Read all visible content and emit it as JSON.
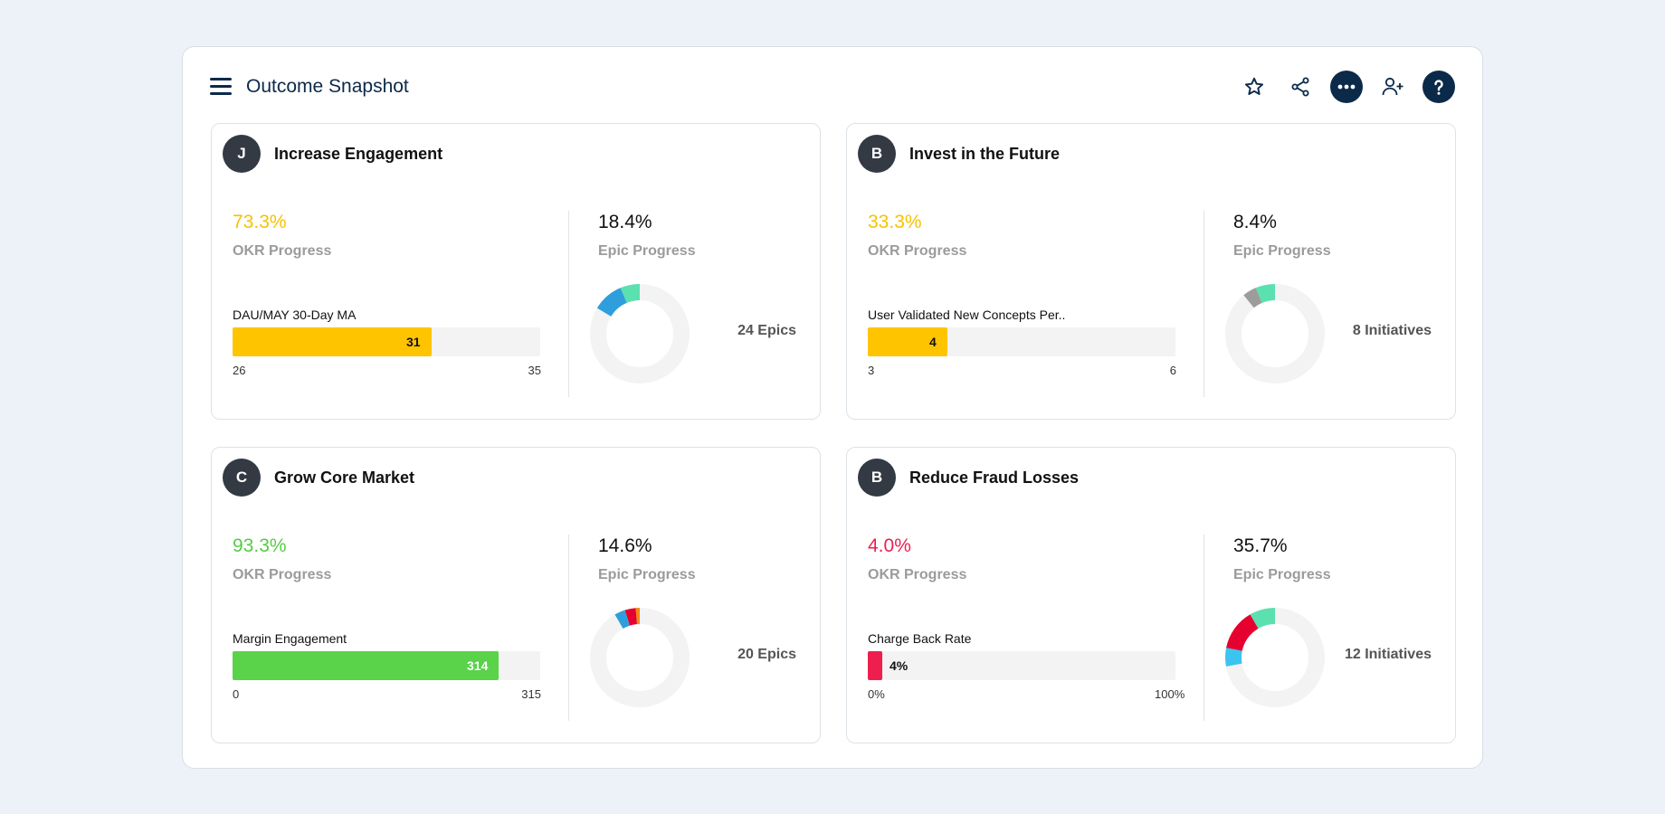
{
  "header": {
    "title": "Outcome Snapshot",
    "icons": [
      "menu-icon",
      "star-icon",
      "share-icon",
      "more-icon",
      "add-user-icon",
      "help-icon"
    ]
  },
  "cards": [
    {
      "avatar": "J",
      "title": "Increase Engagement",
      "okr_progress": "73.3%",
      "okr_label": "OKR Progress",
      "okr_color": "#f7c200",
      "metric": {
        "name": "DAU/MAY 30-Day MA",
        "value": "31",
        "min": "26",
        "max": "35",
        "fill_fraction": 0.646,
        "color": "#ffc400",
        "label_color": "#111111"
      },
      "epic_progress": "18.4%",
      "epic_label": "Epic Progress",
      "count_label": "24 Epics",
      "donut": [
        {
          "fraction": 0.065,
          "color": "#5be0b0"
        },
        {
          "fraction": 0.1,
          "color": "#2e9fdc"
        }
      ]
    },
    {
      "avatar": "B",
      "title": "Invest in the Future",
      "okr_progress": "33.3%",
      "okr_label": "OKR Progress",
      "okr_color": "#f7c200",
      "metric": {
        "name": "User Validated New Concepts Per..",
        "value": "4",
        "min": "3",
        "max": "6",
        "fill_fraction": 0.26,
        "color": "#ffc400",
        "label_color": "#111111"
      },
      "epic_progress": "8.4%",
      "epic_label": "Epic Progress",
      "count_label": "8 Initiatives",
      "donut": [
        {
          "fraction": 0.065,
          "color": "#5be0b0"
        },
        {
          "fraction": 0.045,
          "color": "#9c9c9c"
        }
      ]
    },
    {
      "avatar": "C",
      "title": "Grow Core Market",
      "okr_progress": "93.3%",
      "okr_label": "OKR Progress",
      "okr_color": "#55cc44",
      "metric": {
        "name": "Margin Engagement",
        "value": "314",
        "min": "0",
        "max": "315",
        "fill_fraction": 0.864,
        "color": "#5ad24a",
        "label_color": "#ffffff"
      },
      "epic_progress": "14.6%",
      "epic_label": "Epic Progress",
      "count_label": "20 Epics",
      "donut": [
        {
          "fraction": 0.015,
          "color": "#f48a14"
        },
        {
          "fraction": 0.035,
          "color": "#e6002f"
        },
        {
          "fraction": 0.035,
          "color": "#2e9fdc"
        }
      ]
    },
    {
      "avatar": "B",
      "title": "Reduce Fraud Losses",
      "okr_progress": "4.0%",
      "okr_label": "OKR Progress",
      "okr_color": "#ee1f4f",
      "metric": {
        "name": "Charge Back Rate",
        "value": "4%",
        "min": "0%",
        "max": "100%",
        "fill_fraction": 0.045,
        "color": "#ee1f4f",
        "label_color": "#111111"
      },
      "epic_progress": "35.7%",
      "epic_label": "Epic Progress",
      "count_label": "12 Initiatives",
      "donut": [
        {
          "fraction": 0.085,
          "color": "#5be0b0"
        },
        {
          "fraction": 0.135,
          "color": "#e6002f"
        },
        {
          "fraction": 0.06,
          "color": "#3cc4f0"
        }
      ]
    }
  ]
}
